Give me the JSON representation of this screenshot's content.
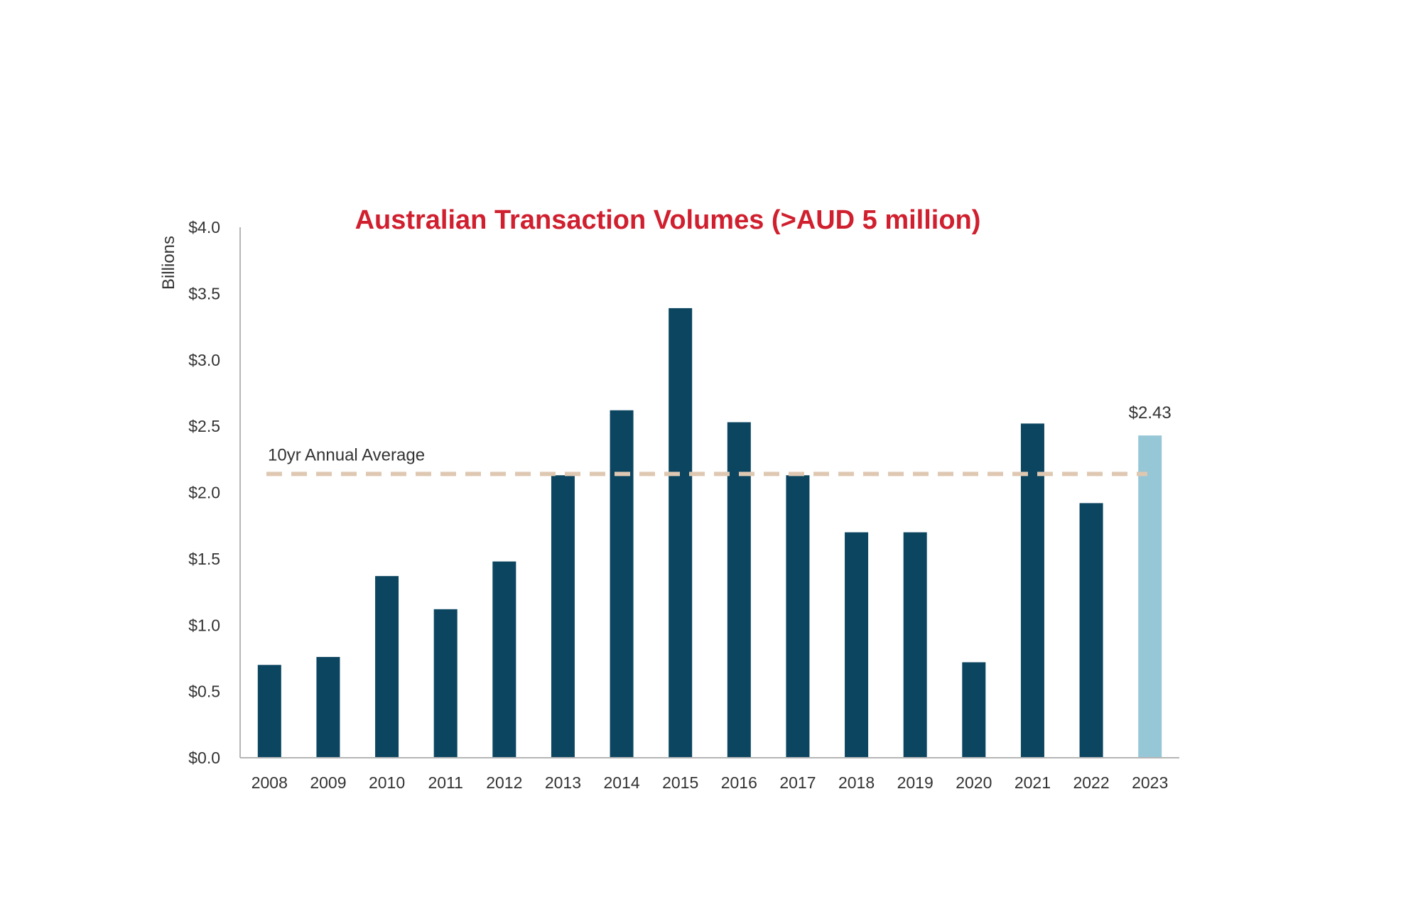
{
  "chart_data": {
    "type": "bar",
    "title": "Australian Transaction Volumes (>AUD 5 million)",
    "ylabel": "Billions",
    "xlabel": "",
    "ylim": [
      0,
      4.0
    ],
    "yticks": [
      "$0.0",
      "$0.5",
      "$1.0",
      "$1.5",
      "$2.0",
      "$2.5",
      "$3.0",
      "$3.5",
      "$4.0"
    ],
    "ytick_values": [
      0,
      0.5,
      1.0,
      1.5,
      2.0,
      2.5,
      3.0,
      3.5,
      4.0
    ],
    "categories": [
      "2008",
      "2009",
      "2010",
      "2011",
      "2012",
      "2013",
      "2014",
      "2015",
      "2016",
      "2017",
      "2018",
      "2019",
      "2020",
      "2021",
      "2022",
      "2023"
    ],
    "values": [
      0.7,
      0.76,
      1.37,
      1.12,
      1.48,
      2.13,
      2.62,
      3.39,
      2.53,
      2.13,
      1.7,
      1.7,
      0.72,
      2.52,
      1.92,
      2.43
    ],
    "highlight_index": 15,
    "data_labels": [
      {
        "index": 15,
        "text": "$2.43"
      }
    ],
    "average_line": {
      "label": "10yr Annual Average",
      "value": 2.14
    },
    "grid": false,
    "colors": {
      "bar": "#0b4560",
      "highlight": "#96c7d6",
      "average_line": "#dfc8b2",
      "title": "#d01f2e",
      "axis": "#b5b5b5"
    }
  }
}
